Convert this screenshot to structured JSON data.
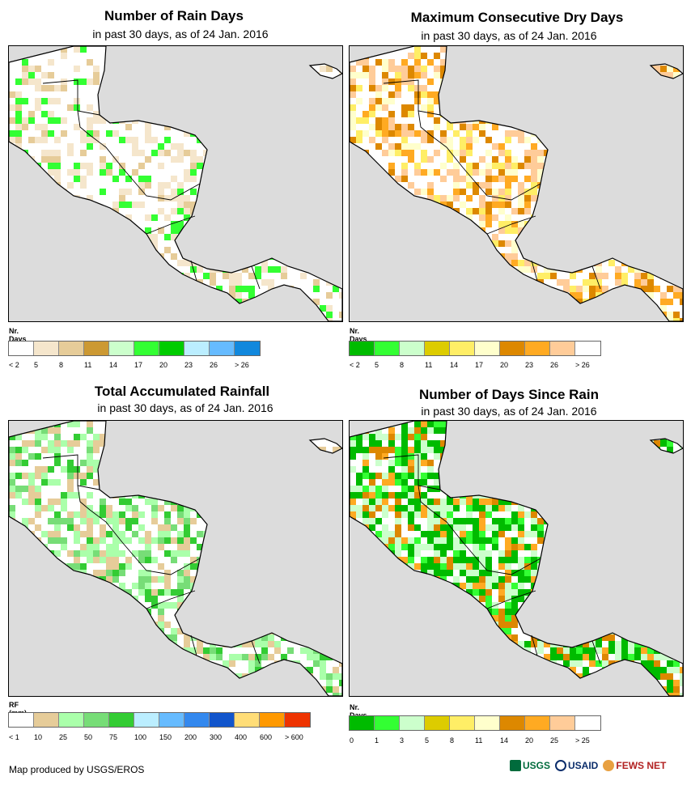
{
  "panels": [
    {
      "title": "Number of Rain Days",
      "subtitle": "in past 30 days, as of 24 Jan. 2016",
      "legend_title": "Nr. Days",
      "legend_colors": [
        "#ffffff",
        "#f5e6cc",
        "#e6cc99",
        "#cc9933",
        "#ccffcc",
        "#33ff33",
        "#00cc00",
        "#bbeeff",
        "#66bbff",
        "#1188dd"
      ],
      "legend_ticks": [
        "< 2",
        "5",
        "8",
        "11",
        "14",
        "17",
        "20",
        "23",
        "26",
        "> 26"
      ],
      "fill": [
        "#ffffff",
        "#ffffff",
        "#f5e6cc",
        "#ffffff",
        "#ffffff",
        "#e6cc99",
        "#ffffff",
        "#33ff33",
        "#ffffff",
        "#f5e6cc"
      ],
      "map_icon": "central-america-rain-days-map"
    },
    {
      "title": "Maximum Consecutive Dry Days",
      "subtitle": "in past 30 days, as of 24 Jan. 2016",
      "legend_title": "Nr. Days",
      "legend_colors": [
        "#00bb00",
        "#33ff33",
        "#ccffcc",
        "#ddcc00",
        "#ffee66",
        "#ffffcc",
        "#dd8800",
        "#ffaa22",
        "#ffcc99",
        "#ffffff"
      ],
      "legend_ticks": [
        "< 2",
        "5",
        "8",
        "11",
        "14",
        "17",
        "20",
        "23",
        "26",
        "> 26"
      ],
      "fill": [
        "#ffffff",
        "#ffcc99",
        "#ffffcc",
        "#ffffff",
        "#dd8800",
        "#ffffff",
        "#ffcc99",
        "#ffee66",
        "#ffffff",
        "#ffaa22"
      ],
      "map_icon": "central-america-dry-days-map"
    },
    {
      "title": "Total Accumulated Rainfall",
      "subtitle": "in past 30 days, as of 24 Jan. 2016",
      "legend_title": "RF (mm)",
      "legend_colors": [
        "#ffffff",
        "#e6cc99",
        "#aaffaa",
        "#77dd77",
        "#33cc33",
        "#bbeeff",
        "#66bbff",
        "#3388ee",
        "#1155cc",
        "#ffdd77",
        "#ff9900",
        "#ee3300"
      ],
      "legend_ticks": [
        "< 1",
        "10",
        "25",
        "50",
        "75",
        "100",
        "150",
        "200",
        "300",
        "400",
        "600",
        "> 600"
      ],
      "fill": [
        "#ffffff",
        "#aaffaa",
        "#77dd77",
        "#ffffff",
        "#e6cc99",
        "#ffffff",
        "#aaffaa",
        "#33cc33",
        "#ffffff",
        "#e6cc99"
      ],
      "map_icon": "central-america-rainfall-map"
    },
    {
      "title": "Number of Days Since Rain",
      "subtitle": "in past 30 days, as of 24 Jan. 2016",
      "legend_title": "Nr. Days",
      "legend_colors": [
        "#00bb00",
        "#33ff33",
        "#ccffcc",
        "#ddcc00",
        "#ffee66",
        "#ffffcc",
        "#dd8800",
        "#ffaa22",
        "#ffcc99",
        "#ffffff"
      ],
      "legend_ticks": [
        "0",
        "1",
        "3",
        "5",
        "8",
        "11",
        "14",
        "20",
        "25",
        "> 25"
      ],
      "fill": [
        "#ccffcc",
        "#00bb00",
        "#00bb00",
        "#ffffff",
        "#dd8800",
        "#33ff33",
        "#00bb00",
        "#ffffff",
        "#ffaa22",
        "#ccffcc"
      ],
      "map_icon": "central-america-days-since-rain-map"
    }
  ],
  "footer": "Map produced by USGS/EROS",
  "logos": {
    "usgs": "USGS",
    "usaid": "USAID",
    "fews": "FEWS NET"
  }
}
